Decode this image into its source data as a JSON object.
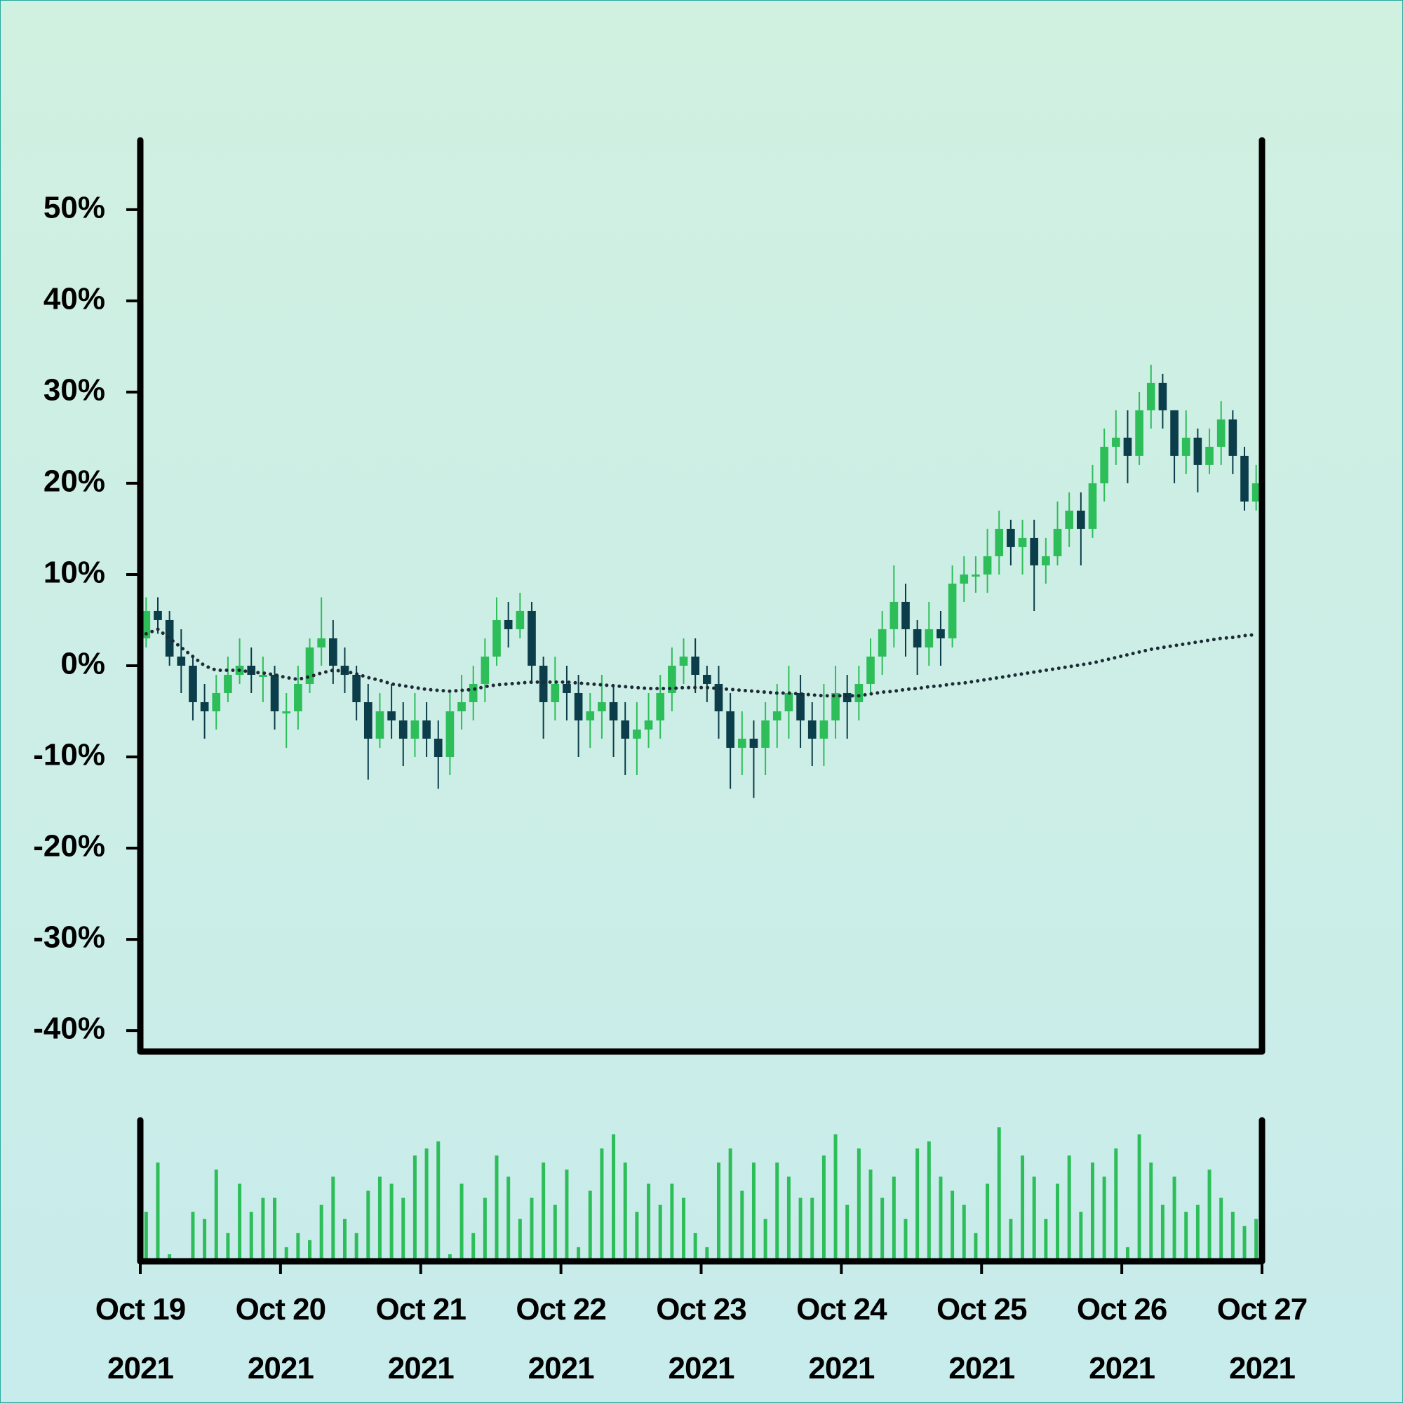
{
  "chart_data": {
    "type": "candlestick",
    "xlim": [
      "2021-10-19",
      "2021-10-27"
    ],
    "xticks": [
      {
        "value": "2021-10-19",
        "label": "Oct 19 2021"
      },
      {
        "value": "2021-10-20",
        "label": "Oct 20 2021"
      },
      {
        "value": "2021-10-21",
        "label": "Oct 21 2021"
      },
      {
        "value": "2021-10-22",
        "label": "Oct 22 2021"
      },
      {
        "value": "2021-10-23",
        "label": "Oct 23 2021"
      },
      {
        "value": "2021-10-24",
        "label": "Oct 24 2021"
      },
      {
        "value": "2021-10-25",
        "label": "Oct 25 2021"
      },
      {
        "value": "2021-10-26",
        "label": "Oct 26 2021"
      },
      {
        "value": "2021-10-27",
        "label": "Oct 27 2021"
      }
    ],
    "ylim": [
      -42.3,
      57.6
    ],
    "yticks": [
      {
        "value": 50,
        "label": "50%"
      },
      {
        "value": 40,
        "label": "40%"
      },
      {
        "value": 30,
        "label": "30%"
      },
      {
        "value": 20,
        "label": "20%"
      },
      {
        "value": 10,
        "label": "10%"
      },
      {
        "value": 0,
        "label": "0%"
      },
      {
        "value": -10,
        "label": "-10%"
      },
      {
        "value": -20,
        "label": "-20%"
      },
      {
        "value": -30,
        "label": "-30%"
      },
      {
        "value": -40,
        "label": "-40%"
      }
    ],
    "up_color": "#2dbe5a",
    "down_color": "#0b3d4a",
    "open": [
      3,
      6,
      5,
      1,
      0,
      -4,
      -5,
      -3,
      -1,
      0,
      -1,
      -1,
      -5,
      -5,
      -2,
      2,
      3,
      0,
      -1,
      -4,
      -8,
      -5,
      -6,
      -8,
      -6,
      -8,
      -10,
      -5,
      -4,
      -2,
      1,
      5,
      4,
      6,
      0,
      -4,
      -2,
      -3,
      -6,
      -5,
      -4,
      -6,
      -8,
      -7,
      -6,
      -3,
      0,
      1,
      -1,
      -2,
      -5,
      -9,
      -8,
      -9,
      -6,
      -5,
      -3,
      -6,
      -8,
      -6,
      -3,
      -4,
      -2,
      1,
      4,
      7,
      4,
      2,
      4,
      3,
      9,
      10,
      10,
      12,
      15,
      13,
      14,
      11,
      12,
      15,
      17,
      15,
      20,
      24,
      25,
      23,
      28,
      31,
      28,
      23,
      25,
      22,
      24,
      27,
      23,
      18
    ],
    "high": [
      7.5,
      7.5,
      6,
      4,
      1,
      -2,
      -1,
      1,
      3,
      2,
      1,
      0,
      -3,
      0,
      3,
      7.5,
      5,
      2,
      0,
      -2,
      -3,
      -2,
      -4,
      -3,
      -4,
      -6,
      -3,
      -1,
      0,
      3,
      7.5,
      7,
      8,
      7,
      1,
      1,
      0,
      -1,
      -3,
      -1,
      -2,
      -4,
      -4,
      -3,
      -1,
      2,
      3,
      3,
      0,
      0,
      -3,
      -5,
      -6,
      -4,
      -2,
      0,
      -1,
      -4,
      -2,
      0,
      -1,
      0,
      3,
      6,
      11,
      9,
      5,
      7,
      6,
      11,
      12,
      12,
      15,
      17,
      16,
      16,
      16,
      14,
      18,
      19,
      19,
      22,
      26,
      28,
      28,
      30,
      33,
      32,
      28,
      28,
      26,
      26,
      29,
      28,
      24,
      22
    ],
    "low": [
      2,
      3.5,
      0,
      -3,
      -6,
      -8,
      -7,
      -4,
      -2,
      -3,
      -4,
      -7,
      -9,
      -7,
      -3,
      0,
      -2,
      -3,
      -6,
      -12.5,
      -9,
      -8,
      -11,
      -10,
      -10,
      -13.5,
      -12,
      -7,
      -6,
      -4,
      0,
      2,
      3,
      -2,
      -8,
      -6,
      -6,
      -10,
      -9,
      -8,
      -10,
      -12,
      -12,
      -9,
      -8,
      -5,
      -2,
      -3,
      -4,
      -8,
      -13.5,
      -12,
      -14.5,
      -12,
      -9,
      -8,
      -9,
      -11,
      -11,
      -8,
      -8,
      -6,
      -3,
      -1,
      2,
      1,
      -1,
      0,
      0,
      2,
      7,
      8,
      8,
      10,
      11,
      10,
      6,
      9,
      11,
      13,
      11,
      14,
      18,
      22,
      20,
      22,
      26,
      26,
      20,
      21,
      19,
      21,
      22,
      21,
      17,
      17
    ],
    "close": [
      6,
      5,
      1,
      0,
      -4,
      -5,
      -3,
      -1,
      0,
      -1,
      -1,
      -5,
      -5,
      -2,
      2,
      3,
      0,
      -1,
      -4,
      -8,
      -5,
      -6,
      -8,
      -6,
      -8,
      -10,
      -5,
      -4,
      -2,
      1,
      5,
      4,
      6,
      0,
      -4,
      -2,
      -3,
      -6,
      -5,
      -4,
      -6,
      -8,
      -7,
      -6,
      -3,
      0,
      1,
      -1,
      -2,
      -5,
      -9,
      -8,
      -9,
      -6,
      -5,
      -3,
      -6,
      -8,
      -6,
      -3,
      -4,
      -2,
      1,
      4,
      7,
      4,
      2,
      4,
      3,
      9,
      10,
      10,
      12,
      15,
      13,
      14,
      11,
      12,
      15,
      17,
      15,
      20,
      24,
      25,
      23,
      28,
      31,
      28,
      23,
      25,
      22,
      24,
      27,
      23,
      18,
      20
    ],
    "moving_average": {
      "color": "#1e2a35",
      "style": "dotted",
      "values": [
        3.5,
        4,
        3,
        2,
        1,
        0,
        -0.5,
        -0.5,
        -0.5,
        -0.7,
        -0.8,
        -1,
        -1.3,
        -1.5,
        -1.2,
        -0.8,
        -0.5,
        -0.6,
        -0.9,
        -1.3,
        -1.6,
        -2,
        -2.2,
        -2.4,
        -2.6,
        -2.7,
        -2.8,
        -2.7,
        -2.6,
        -2.3,
        -2.1,
        -2,
        -1.9,
        -1.8,
        -1.8,
        -1.8,
        -1.8,
        -1.9,
        -2,
        -2.1,
        -2.2,
        -2.3,
        -2.4,
        -2.5,
        -2.5,
        -2.5,
        -2.4,
        -2.4,
        -2.4,
        -2.5,
        -2.6,
        -2.7,
        -2.8,
        -2.9,
        -3,
        -3,
        -3.1,
        -3.2,
        -3.3,
        -3.3,
        -3.3,
        -3.3,
        -3.1,
        -2.9,
        -2.8,
        -2.6,
        -2.5,
        -2.3,
        -2.2,
        -2,
        -1.9,
        -1.7,
        -1.5,
        -1.3,
        -1.1,
        -0.9,
        -0.7,
        -0.5,
        -0.3,
        -0.1,
        0.1,
        0.3,
        0.6,
        0.9,
        1.2,
        1.5,
        1.8,
        2,
        2.2,
        2.4,
        2.6,
        2.8,
        3,
        3.1,
        3.3,
        3.4
      ]
    },
    "volume": {
      "color": "#2dbe5a",
      "ylim": [
        0,
        100
      ],
      "values": [
        35,
        70,
        5,
        2,
        35,
        30,
        65,
        20,
        55,
        35,
        45,
        45,
        10,
        20,
        15,
        40,
        60,
        30,
        20,
        50,
        60,
        55,
        45,
        75,
        80,
        85,
        5,
        55,
        20,
        45,
        75,
        60,
        30,
        45,
        70,
        40,
        65,
        10,
        50,
        80,
        90,
        70,
        35,
        55,
        40,
        55,
        45,
        20,
        10,
        70,
        80,
        50,
        70,
        30,
        70,
        60,
        45,
        45,
        75,
        90,
        40,
        80,
        65,
        45,
        60,
        30,
        80,
        85,
        60,
        50,
        40,
        20,
        55,
        95,
        30,
        75,
        60,
        30,
        55,
        75,
        35,
        70,
        60,
        80,
        10,
        90,
        70,
        40,
        60,
        35,
        40,
        65,
        45,
        35,
        25,
        30
      ]
    }
  }
}
